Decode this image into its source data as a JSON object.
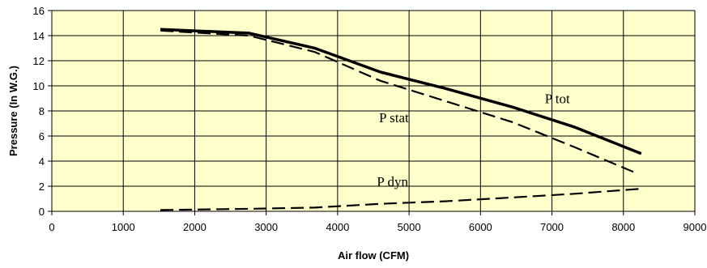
{
  "chart_data": {
    "type": "line",
    "title": "",
    "xlabel": "Air flow (CFM)",
    "ylabel": "Pressure (In W.G.)",
    "xlim": [
      0,
      9000
    ],
    "ylim": [
      0,
      16
    ],
    "x_ticks": [
      0,
      1000,
      2000,
      3000,
      4000,
      5000,
      6000,
      7000,
      8000,
      9000
    ],
    "y_ticks": [
      0,
      2,
      4,
      6,
      8,
      10,
      12,
      14,
      16
    ],
    "grid": true,
    "legend": "none",
    "plot_background": "#FFFFCC",
    "series": [
      {
        "name": "P tot",
        "style": "solid",
        "x": [
          1520,
          2760,
          3680,
          4600,
          5500,
          6450,
          7320,
          8250
        ],
        "y": [
          14.5,
          14.2,
          13.0,
          11.1,
          9.8,
          8.3,
          6.7,
          4.6
        ]
      },
      {
        "name": "P stat",
        "style": "dashed",
        "x": [
          1520,
          2760,
          3680,
          4600,
          5500,
          6450,
          7320,
          8200
        ],
        "y": [
          14.4,
          14.0,
          12.7,
          10.4,
          8.8,
          7.1,
          5.1,
          3.0
        ]
      },
      {
        "name": "P dyn",
        "style": "dashed",
        "x": [
          1520,
          2760,
          3680,
          4600,
          5500,
          6450,
          7320,
          8250
        ],
        "y": [
          0.1,
          0.2,
          0.3,
          0.6,
          0.8,
          1.1,
          1.4,
          1.8
        ]
      }
    ],
    "labels": [
      {
        "text": "P tot",
        "x": 6900,
        "y": 8.6
      },
      {
        "text": "P stat",
        "x": 4580,
        "y": 7.1
      },
      {
        "text": "P dyn",
        "x": 4550,
        "y": 2.0
      }
    ]
  }
}
